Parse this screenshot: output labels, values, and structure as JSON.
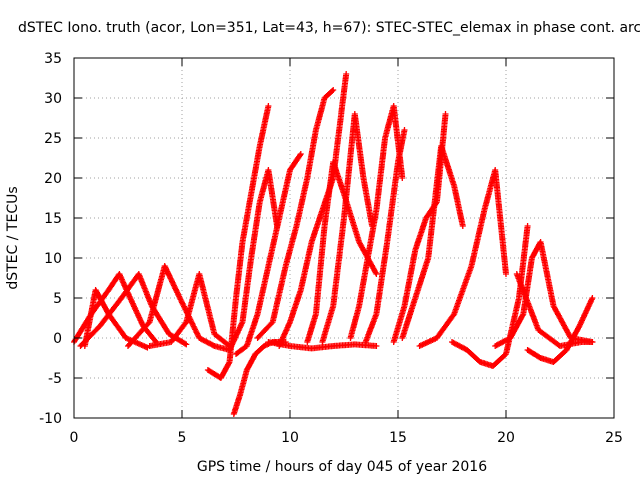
{
  "chart_data": {
    "type": "scatter",
    "title": "dSTEC Iono. truth (acor, Lon=351, Lat=43, h=67): STEC-STEC_elemax in phase cont. arc",
    "xlabel": "GPS time / hours of day 045 of year 2016",
    "ylabel": "dSTEC  / TECUs",
    "xlim": [
      0,
      25
    ],
    "ylim": [
      -10,
      35
    ],
    "xticks": [
      "0",
      "5",
      "10",
      "15",
      "20",
      "25"
    ],
    "yticks": [
      "-10",
      "-5",
      "0",
      "5",
      "10",
      "15",
      "20",
      "25",
      "30",
      "35"
    ],
    "grid": true,
    "marker": "plus",
    "color": "#ff0000",
    "series": [
      {
        "x": [
          0.0,
          0.8,
          1.6,
          2.1,
          2.6,
          3.2,
          3.8
        ],
        "y": [
          -0.5,
          3.0,
          6.0,
          8.0,
          5.0,
          1.5,
          -0.5
        ]
      },
      {
        "x": [
          0.3,
          1.2,
          2.2,
          3.0,
          3.6,
          4.4,
          5.2
        ],
        "y": [
          -1.0,
          1.5,
          5.0,
          8.0,
          4.0,
          0.5,
          -0.8
        ]
      },
      {
        "x": [
          0.5,
          1.0,
          1.6,
          2.4,
          3.4
        ],
        "y": [
          -1.0,
          6.0,
          3.0,
          0.0,
          -1.2
        ]
      },
      {
        "x": [
          2.5,
          3.5,
          4.2,
          4.9,
          5.8,
          6.5
        ],
        "y": [
          -1.0,
          2.0,
          9.0,
          5.0,
          0.0,
          -1.0
        ]
      },
      {
        "x": [
          3.5,
          4.5,
          5.2,
          5.8,
          6.5,
          7.2
        ],
        "y": [
          -1.0,
          -0.5,
          2.0,
          8.0,
          0.5,
          -1.0
        ]
      },
      {
        "x": [
          6.2,
          6.8,
          7.2,
          7.5,
          7.8,
          8.2,
          8.6,
          9.0
        ],
        "y": [
          -4.0,
          -5.0,
          -3.0,
          5.0,
          12.0,
          18.0,
          24.0,
          29.0
        ]
      },
      {
        "x": [
          7.4,
          7.7,
          8.0,
          8.4,
          8.8,
          9.2,
          9.8
        ],
        "y": [
          -9.5,
          -7.0,
          -4.0,
          -2.0,
          -1.0,
          -0.5,
          -0.5
        ]
      },
      {
        "x": [
          6.5,
          7.2,
          7.8,
          8.2,
          8.6,
          9.0,
          9.4
        ],
        "y": [
          -1.0,
          -1.5,
          2.0,
          10.0,
          17.0,
          21.0,
          14.0
        ]
      },
      {
        "x": [
          7.5,
          8.0,
          8.5,
          9.0,
          9.5,
          10.0,
          10.5
        ],
        "y": [
          -2.0,
          -1.0,
          3.0,
          9.0,
          15.0,
          21.0,
          23.0
        ]
      },
      {
        "x": [
          8.5,
          9.2,
          9.8,
          10.3,
          10.8,
          11.2,
          11.6,
          12.0
        ],
        "y": [
          0.0,
          2.0,
          9.0,
          14.0,
          20.0,
          26.0,
          30.0,
          31.0
        ]
      },
      {
        "x": [
          9.5,
          10.0,
          10.5,
          11.0,
          11.5,
          12.0,
          12.6
        ],
        "y": [
          -1.0,
          2.0,
          6.0,
          12.0,
          16.0,
          20.0,
          33.0
        ]
      },
      {
        "x": [
          10.8,
          11.2,
          11.6,
          12.0,
          12.5,
          13.2,
          14.0
        ],
        "y": [
          -0.5,
          3.0,
          14.0,
          22.0,
          18.0,
          12.0,
          8.0
        ]
      },
      {
        "x": [
          11.5,
          12.0,
          12.5,
          13.0,
          13.4,
          13.8
        ],
        "y": [
          -0.5,
          4.0,
          15.0,
          28.0,
          20.0,
          14.0
        ]
      },
      {
        "x": [
          12.8,
          13.2,
          13.6,
          14.0,
          14.4,
          14.8,
          15.2
        ],
        "y": [
          0.0,
          4.0,
          10.0,
          16.0,
          25.0,
          29.0,
          20.0
        ]
      },
      {
        "x": [
          13.5,
          14.0,
          14.5,
          15.0,
          15.3
        ],
        "y": [
          -0.5,
          3.0,
          12.0,
          22.0,
          26.0
        ]
      },
      {
        "x": [
          14.8,
          15.3,
          15.8,
          16.3,
          16.8,
          17.2
        ],
        "y": [
          -0.5,
          4.0,
          11.0,
          15.0,
          17.0,
          28.0
        ]
      },
      {
        "x": [
          15.2,
          15.8,
          16.4,
          17.0,
          17.6,
          18.0
        ],
        "y": [
          0.0,
          5.0,
          10.0,
          24.0,
          19.0,
          14.0
        ]
      },
      {
        "x": [
          16.0,
          16.8,
          17.6,
          18.4,
          19.0,
          19.5,
          20.0
        ],
        "y": [
          -1.0,
          0.0,
          3.0,
          9.0,
          16.0,
          21.0,
          8.0
        ]
      },
      {
        "x": [
          17.5,
          18.2,
          18.8,
          19.4,
          20.0,
          20.6,
          21.0
        ],
        "y": [
          -0.5,
          -1.5,
          -3.0,
          -3.5,
          -2.0,
          5.0,
          14.0
        ]
      },
      {
        "x": [
          19.5,
          20.2,
          20.8,
          21.2,
          21.6,
          22.2,
          23.0,
          24.0
        ],
        "y": [
          -1.0,
          0.0,
          3.0,
          10.0,
          12.0,
          4.0,
          0.0,
          -0.5
        ]
      },
      {
        "x": [
          21.0,
          21.6,
          22.2,
          22.8,
          23.4,
          24.0
        ],
        "y": [
          -1.5,
          -2.5,
          -3.0,
          -1.5,
          1.5,
          5.0
        ]
      },
      {
        "x": [
          20.5,
          21.5,
          22.5,
          23.5,
          24.0
        ],
        "y": [
          8.0,
          1.0,
          -1.0,
          -0.5,
          -0.5
        ]
      },
      {
        "x": [
          9.0,
          10.0,
          11.0,
          12.0,
          13.0,
          14.0
        ],
        "y": [
          -0.5,
          -1.0,
          -1.3,
          -1.0,
          -0.8,
          -1.0
        ]
      }
    ]
  }
}
